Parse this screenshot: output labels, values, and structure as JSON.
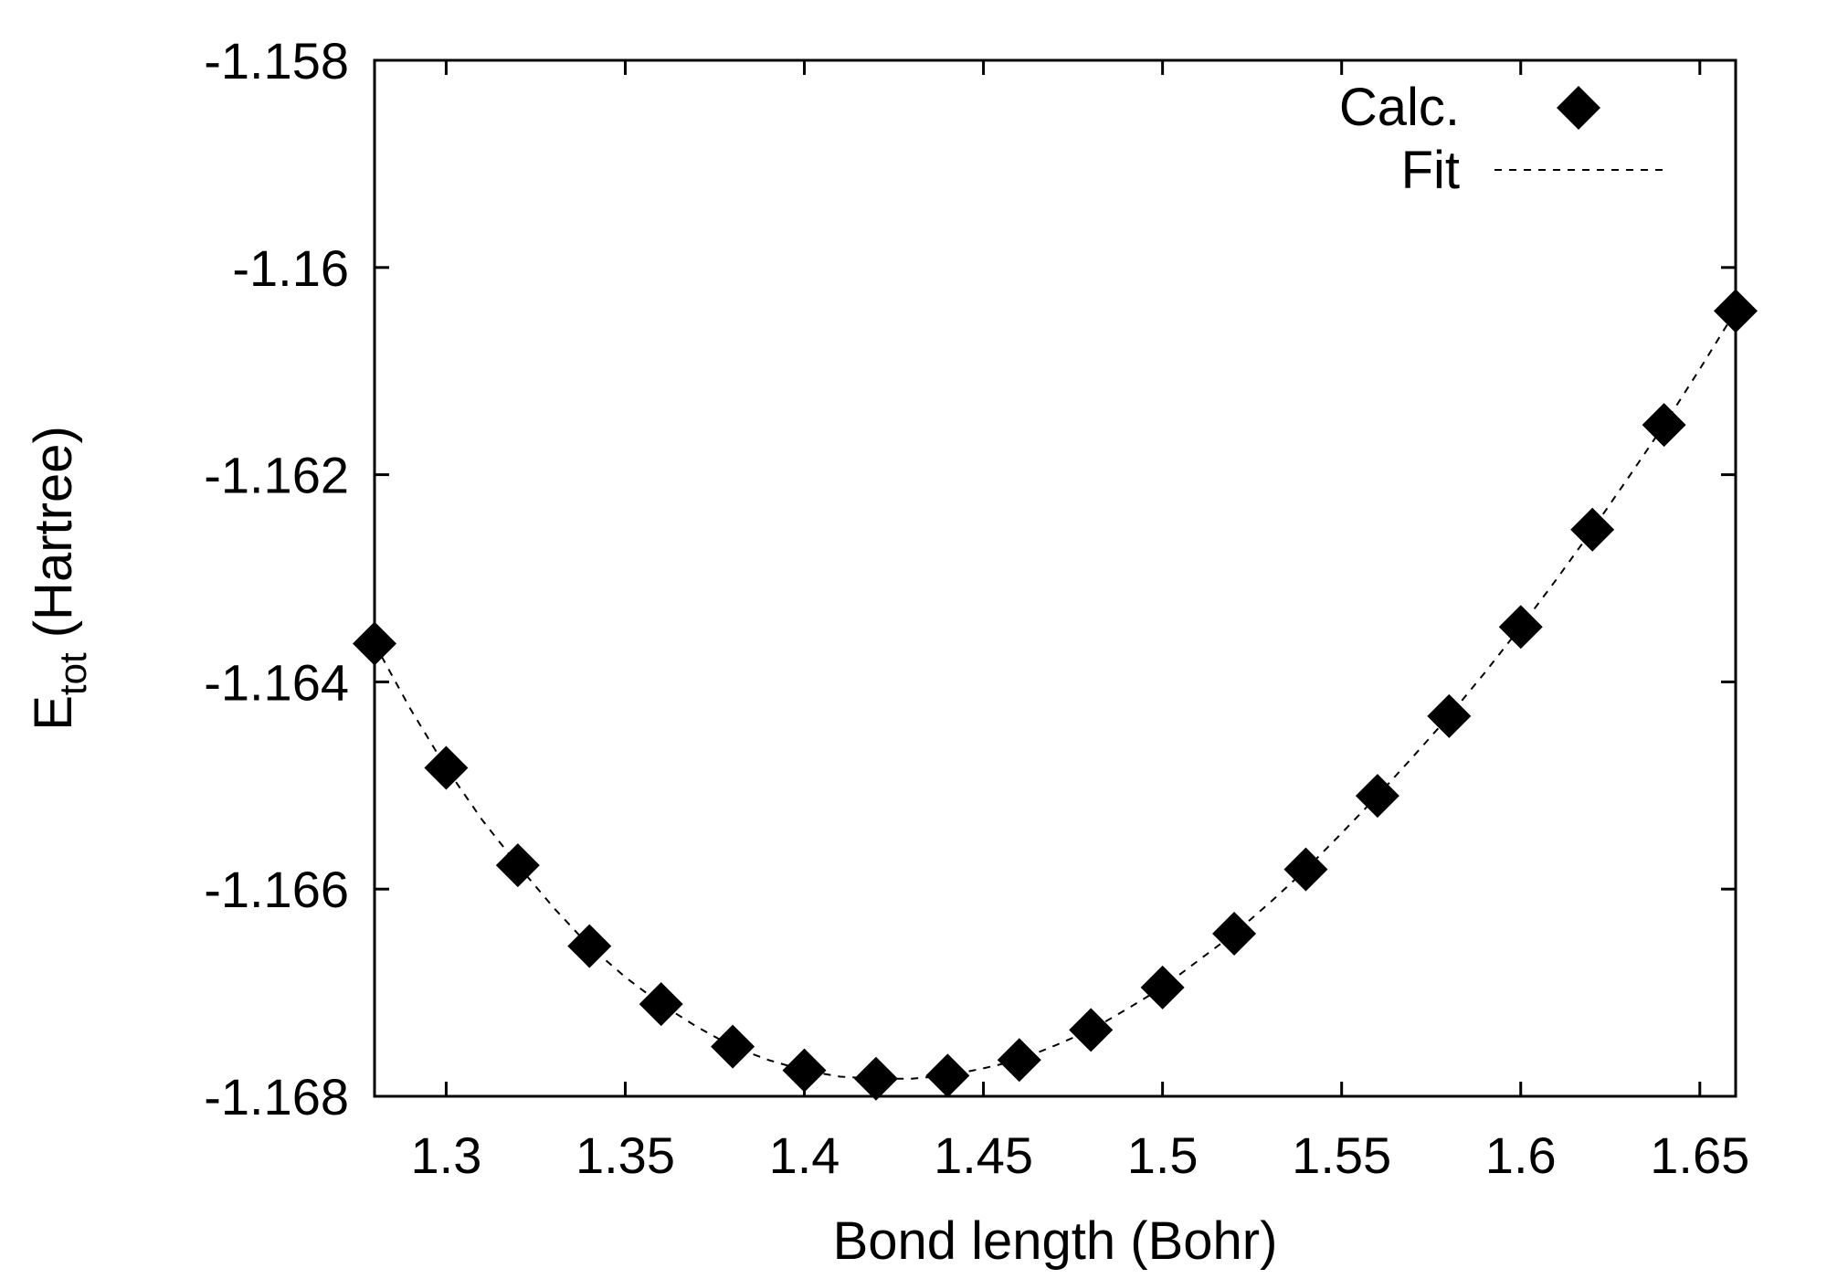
{
  "chart_data": {
    "type": "scatter",
    "title": "",
    "xlabel": "Bond length (Bohr)",
    "ylabel": {
      "main": "E",
      "subscript": "tot",
      "suffix": " (Hartree)"
    },
    "xlim": [
      1.28,
      1.66
    ],
    "ylim": [
      -1.168,
      -1.158
    ],
    "x_ticks": [
      1.3,
      1.35,
      1.4,
      1.45,
      1.5,
      1.55,
      1.6,
      1.65
    ],
    "x_tick_labels": [
      "1.3",
      "1.35",
      "1.4",
      "1.45",
      "1.5",
      "1.55",
      "1.6",
      "1.65"
    ],
    "y_ticks": [
      -1.168,
      -1.166,
      -1.164,
      -1.162,
      -1.16,
      -1.158
    ],
    "y_tick_labels": [
      "-1.168",
      "-1.166",
      "-1.164",
      "-1.162",
      "-1.16",
      "-1.158"
    ],
    "grid": false,
    "legend_position": "top-right",
    "series": [
      {
        "name": "Calc.",
        "kind": "points",
        "marker": "diamond",
        "color": "#000000",
        "x": [
          1.28,
          1.3,
          1.32,
          1.34,
          1.36,
          1.38,
          1.4,
          1.42,
          1.44,
          1.46,
          1.48,
          1.5,
          1.52,
          1.54,
          1.56,
          1.58,
          1.6,
          1.62,
          1.64,
          1.66
        ],
        "y": [
          -1.16363,
          -1.16483,
          -1.16577,
          -1.16655,
          -1.16711,
          -1.16752,
          -1.16775,
          -1.16783,
          -1.1678,
          -1.16765,
          -1.16736,
          -1.16695,
          -1.16643,
          -1.16581,
          -1.1651,
          -1.16433,
          -1.16347,
          -1.16253,
          -1.16152,
          -1.16042
        ]
      },
      {
        "name": "Fit",
        "kind": "line",
        "dash": "dotted",
        "color": "#000000",
        "x": [
          1.28,
          1.29,
          1.3,
          1.31,
          1.32,
          1.33,
          1.34,
          1.35,
          1.36,
          1.37,
          1.38,
          1.39,
          1.4,
          1.41,
          1.42,
          1.43,
          1.44,
          1.45,
          1.46,
          1.47,
          1.48,
          1.49,
          1.5,
          1.51,
          1.52,
          1.53,
          1.54,
          1.55,
          1.56,
          1.57,
          1.58,
          1.59,
          1.6,
          1.61,
          1.62,
          1.63,
          1.64,
          1.65,
          1.66
        ],
        "y": [
          -1.16363,
          -1.16426,
          -1.16483,
          -1.16533,
          -1.16577,
          -1.16618,
          -1.16655,
          -1.16685,
          -1.16711,
          -1.16733,
          -1.16752,
          -1.16765,
          -1.16775,
          -1.16781,
          -1.16783,
          -1.16783,
          -1.1678,
          -1.16773,
          -1.16765,
          -1.16751,
          -1.16736,
          -1.16716,
          -1.16695,
          -1.16669,
          -1.16643,
          -1.16613,
          -1.16581,
          -1.16546,
          -1.1651,
          -1.16472,
          -1.16433,
          -1.16391,
          -1.16347,
          -1.16301,
          -1.16253,
          -1.16203,
          -1.16152,
          -1.16098,
          -1.16042
        ]
      }
    ]
  }
}
